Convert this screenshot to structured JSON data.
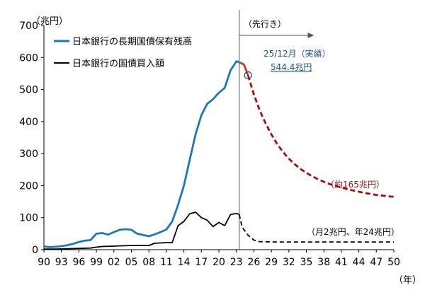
{
  "chart_data": {
    "type": "line",
    "yunit": "（兆円）",
    "xunit": "（年）",
    "ylim": [
      0,
      700
    ],
    "yticks": [
      0,
      100,
      200,
      300,
      400,
      500,
      600,
      700
    ],
    "xlim": [
      1990,
      2050
    ],
    "xticks": [
      {
        "year": 1990,
        "label": "90"
      },
      {
        "year": 1993,
        "label": "93"
      },
      {
        "year": 1996,
        "label": "96"
      },
      {
        "year": 1999,
        "label": "99"
      },
      {
        "year": 2002,
        "label": "02"
      },
      {
        "year": 2005,
        "label": "05"
      },
      {
        "year": 2008,
        "label": "08"
      },
      {
        "year": 2011,
        "label": "11"
      },
      {
        "year": 2014,
        "label": "14"
      },
      {
        "year": 2017,
        "label": "17"
      },
      {
        "year": 2020,
        "label": "20"
      },
      {
        "year": 2023,
        "label": "23"
      },
      {
        "year": 2026,
        "label": "26"
      },
      {
        "year": 2029,
        "label": "29"
      },
      {
        "year": 2032,
        "label": "32"
      },
      {
        "year": 2035,
        "label": "35"
      },
      {
        "year": 2038,
        "label": "38"
      },
      {
        "year": 2041,
        "label": "41"
      },
      {
        "year": 2044,
        "label": "44"
      },
      {
        "year": 2047,
        "label": "47"
      },
      {
        "year": 2050,
        "label": "50"
      }
    ],
    "grid": false,
    "legend_position": "top-left",
    "forecast_label": "（先行き）",
    "forecast_start": 2023.5,
    "series": [
      {
        "name": "日本銀行の長期国債保有残高",
        "color": "#1f77b4",
        "style": "solid",
        "x": [
          1990,
          1991,
          1992,
          1993,
          1994,
          1995,
          1996,
          1997,
          1998,
          1999,
          2000,
          2001,
          2002,
          2003,
          2004,
          2005,
          2006,
          2007,
          2008,
          2009,
          2010,
          2011,
          2012,
          2013,
          2014,
          2015,
          2016,
          2017,
          2018,
          2019,
          2020,
          2021,
          2022,
          2023,
          2023.5
        ],
        "y": [
          10,
          8,
          9,
          11,
          14,
          18,
          24,
          28,
          30,
          50,
          52,
          47,
          55,
          62,
          64,
          62,
          50,
          46,
          42,
          48,
          55,
          63,
          88,
          140,
          200,
          280,
          360,
          420,
          455,
          470,
          490,
          505,
          560,
          588,
          585
        ]
      },
      {
        "name": "日本銀行の国債買入額",
        "color": "#000000",
        "style": "solid",
        "x": [
          1990,
          1992,
          1994,
          1996,
          1998,
          1999,
          2000,
          2002,
          2003,
          2005,
          2007,
          2008,
          2009,
          2010,
          2011,
          2012,
          2013,
          2014,
          2015,
          2016,
          2017,
          2018,
          2019,
          2020,
          2021,
          2022,
          2023,
          2023.5
        ],
        "y": [
          2,
          2,
          3,
          4,
          5,
          8,
          10,
          11,
          12,
          13,
          13,
          13,
          20,
          21,
          22,
          22,
          75,
          88,
          112,
          117,
          100,
          92,
          72,
          85,
          75,
          110,
          113,
          110
        ]
      },
      {
        "name": "actual-tail",
        "color": "#c0392b",
        "style": "solid",
        "x": [
          2023.5,
          2024.3,
          2025
        ],
        "y": [
          585,
          578,
          544.4
        ]
      },
      {
        "name": "holdings-forecast",
        "color": "#a01010",
        "style": "dashed",
        "x": [
          2025,
          2026,
          2027,
          2028,
          2029,
          2030,
          2031,
          2032,
          2033,
          2034,
          2035,
          2036,
          2037,
          2038,
          2039,
          2040,
          2041,
          2042,
          2043,
          2044,
          2045,
          2046,
          2047,
          2048,
          2049,
          2050
        ],
        "y": [
          544.4,
          485,
          435,
          395,
          360,
          330,
          305,
          284,
          267,
          252,
          240,
          229,
          220,
          212,
          205,
          199,
          194,
          189,
          185,
          181,
          177,
          174,
          171,
          169,
          167,
          165
        ]
      },
      {
        "name": "purchases-forecast",
        "color": "#000000",
        "style": "dashed",
        "x": [
          2023.5,
          2024,
          2025,
          2026,
          2027,
          2030,
          2035,
          2040,
          2045,
          2050
        ],
        "y": [
          110,
          70,
          45,
          30,
          25,
          24,
          24,
          24,
          24,
          24
        ]
      }
    ],
    "annotations": {
      "actual_line1": "25/12月（実績）",
      "actual_line2": "544.4兆円",
      "forecast_end": "（約165兆円）",
      "purchase_rate": "（月2兆円、年24兆円）"
    }
  }
}
